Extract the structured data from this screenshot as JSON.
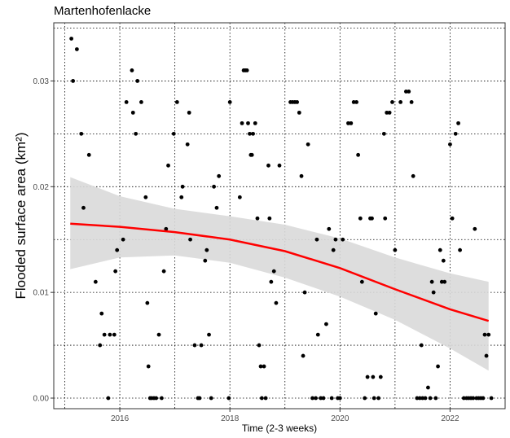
{
  "chart_data": {
    "type": "scatter",
    "title": "Martenhofenlacke",
    "xlabel": "Time (2-3 weeks)",
    "ylabel": "Flooded surface area (km²)",
    "xlim": [
      2014.8,
      2023.0
    ],
    "ylim": [
      -0.001,
      0.0355
    ],
    "x_ticks": [
      2016,
      2018,
      2020,
      2022
    ],
    "y_ticks": [
      0.0,
      0.01,
      0.02,
      0.03
    ],
    "x_tick_labels": [
      "2016",
      "2018",
      "2020",
      "2022"
    ],
    "y_tick_labels": [
      "0.00",
      "0.01",
      "0.02",
      "0.03"
    ],
    "grid": true,
    "colors": {
      "points": "#000000",
      "trend": "#ff0000",
      "band": "#d9d9d9"
    },
    "trend": {
      "x": [
        2015.1,
        2016.0,
        2017.0,
        2018.0,
        2019.0,
        2020.0,
        2021.0,
        2022.0,
        2022.7
      ],
      "y": [
        0.0165,
        0.0162,
        0.0157,
        0.015,
        0.0139,
        0.0123,
        0.0103,
        0.0084,
        0.0073
      ],
      "lower": [
        0.0122,
        0.0133,
        0.0135,
        0.0128,
        0.0114,
        0.0096,
        0.0074,
        0.0047,
        0.0026
      ],
      "upper": [
        0.0209,
        0.0191,
        0.0179,
        0.0172,
        0.0164,
        0.0151,
        0.0133,
        0.0118,
        0.011
      ]
    },
    "points": [
      [
        2015.12,
        0.034
      ],
      [
        2015.15,
        0.03
      ],
      [
        2015.22,
        0.033
      ],
      [
        2015.3,
        0.025
      ],
      [
        2015.34,
        0.018
      ],
      [
        2015.44,
        0.023
      ],
      [
        2015.56,
        0.011
      ],
      [
        2015.64,
        0.005
      ],
      [
        2015.67,
        0.008
      ],
      [
        2015.72,
        0.006
      ],
      [
        2015.79,
        0.0
      ],
      [
        2015.82,
        0.006
      ],
      [
        2015.9,
        0.006
      ],
      [
        2015.92,
        0.012
      ],
      [
        2015.95,
        0.014
      ],
      [
        2016.06,
        0.015
      ],
      [
        2016.12,
        0.028
      ],
      [
        2016.22,
        0.031
      ],
      [
        2016.24,
        0.027
      ],
      [
        2016.29,
        0.025
      ],
      [
        2016.32,
        0.03
      ],
      [
        2016.39,
        0.028
      ],
      [
        2016.47,
        0.019
      ],
      [
        2016.5,
        0.009
      ],
      [
        2016.52,
        0.003
      ],
      [
        2016.55,
        0.0
      ],
      [
        2016.58,
        0.0
      ],
      [
        2016.62,
        0.0
      ],
      [
        2016.66,
        0.0
      ],
      [
        2016.71,
        0.006
      ],
      [
        2016.76,
        0.0
      ],
      [
        2016.8,
        0.012
      ],
      [
        2016.84,
        0.016
      ],
      [
        2016.88,
        0.022
      ],
      [
        2016.98,
        0.025
      ],
      [
        2017.04,
        0.028
      ],
      [
        2017.12,
        0.019
      ],
      [
        2017.14,
        0.02
      ],
      [
        2017.23,
        0.024
      ],
      [
        2017.26,
        0.027
      ],
      [
        2017.28,
        0.015
      ],
      [
        2017.36,
        0.005
      ],
      [
        2017.42,
        0.0
      ],
      [
        2017.45,
        0.0
      ],
      [
        2017.48,
        0.005
      ],
      [
        2017.55,
        0.013
      ],
      [
        2017.58,
        0.014
      ],
      [
        2017.62,
        0.006
      ],
      [
        2017.66,
        0.0
      ],
      [
        2017.71,
        0.02
      ],
      [
        2017.76,
        0.018
      ],
      [
        2017.8,
        0.021
      ],
      [
        2017.98,
        0.0
      ],
      [
        2018.0,
        0.028
      ],
      [
        2018.18,
        0.019
      ],
      [
        2018.22,
        0.026
      ],
      [
        2018.25,
        0.031
      ],
      [
        2018.28,
        0.031
      ],
      [
        2018.31,
        0.031
      ],
      [
        2018.33,
        0.026
      ],
      [
        2018.36,
        0.025
      ],
      [
        2018.38,
        0.023
      ],
      [
        2018.4,
        0.023
      ],
      [
        2018.42,
        0.025
      ],
      [
        2018.46,
        0.026
      ],
      [
        2018.5,
        0.017
      ],
      [
        2018.53,
        0.005
      ],
      [
        2018.56,
        0.003
      ],
      [
        2018.58,
        0.0
      ],
      [
        2018.62,
        0.003
      ],
      [
        2018.65,
        0.0
      ],
      [
        2018.7,
        0.022
      ],
      [
        2018.72,
        0.017
      ],
      [
        2018.75,
        0.011
      ],
      [
        2018.8,
        0.012
      ],
      [
        2018.84,
        0.009
      ],
      [
        2018.9,
        0.022
      ],
      [
        2019.1,
        0.028
      ],
      [
        2019.14,
        0.028
      ],
      [
        2019.18,
        0.028
      ],
      [
        2019.22,
        0.028
      ],
      [
        2019.26,
        0.027
      ],
      [
        2019.3,
        0.021
      ],
      [
        2019.33,
        0.004
      ],
      [
        2019.36,
        0.01
      ],
      [
        2019.42,
        0.024
      ],
      [
        2019.5,
        0.0
      ],
      [
        2019.56,
        0.0
      ],
      [
        2019.58,
        0.015
      ],
      [
        2019.6,
        0.006
      ],
      [
        2019.65,
        0.0
      ],
      [
        2019.7,
        0.0
      ],
      [
        2019.75,
        0.007
      ],
      [
        2019.8,
        0.016
      ],
      [
        2019.85,
        0.0
      ],
      [
        2019.88,
        0.014
      ],
      [
        2019.92,
        0.015
      ],
      [
        2019.96,
        0.0
      ],
      [
        2020.0,
        0.0
      ],
      [
        2020.05,
        0.015
      ],
      [
        2020.15,
        0.026
      ],
      [
        2020.2,
        0.026
      ],
      [
        2020.25,
        0.028
      ],
      [
        2020.3,
        0.028
      ],
      [
        2020.33,
        0.023
      ],
      [
        2020.37,
        0.017
      ],
      [
        2020.4,
        0.011
      ],
      [
        2020.45,
        0.0
      ],
      [
        2020.5,
        0.002
      ],
      [
        2020.55,
        0.017
      ],
      [
        2020.58,
        0.017
      ],
      [
        2020.6,
        0.002
      ],
      [
        2020.62,
        0.0
      ],
      [
        2020.65,
        0.008
      ],
      [
        2020.7,
        0.0
      ],
      [
        2020.74,
        0.002
      ],
      [
        2020.8,
        0.025
      ],
      [
        2020.82,
        0.017
      ],
      [
        2020.85,
        0.027
      ],
      [
        2020.9,
        0.027
      ],
      [
        2020.95,
        0.028
      ],
      [
        2021.0,
        0.014
      ],
      [
        2021.1,
        0.028
      ],
      [
        2021.2,
        0.029
      ],
      [
        2021.25,
        0.029
      ],
      [
        2021.3,
        0.028
      ],
      [
        2021.33,
        0.021
      ],
      [
        2021.4,
        0.0
      ],
      [
        2021.45,
        0.0
      ],
      [
        2021.48,
        0.005
      ],
      [
        2021.5,
        0.0
      ],
      [
        2021.55,
        0.0
      ],
      [
        2021.6,
        0.001
      ],
      [
        2021.64,
        0.0
      ],
      [
        2021.67,
        0.011
      ],
      [
        2021.7,
        0.01
      ],
      [
        2021.74,
        0.0
      ],
      [
        2021.78,
        0.003
      ],
      [
        2021.82,
        0.014
      ],
      [
        2021.85,
        0.011
      ],
      [
        2021.88,
        0.013
      ],
      [
        2021.9,
        0.011
      ],
      [
        2022.0,
        0.024
      ],
      [
        2022.04,
        0.017
      ],
      [
        2022.1,
        0.025
      ],
      [
        2022.15,
        0.026
      ],
      [
        2022.18,
        0.014
      ],
      [
        2022.25,
        0.0
      ],
      [
        2022.3,
        0.0
      ],
      [
        2022.34,
        0.0
      ],
      [
        2022.38,
        0.0
      ],
      [
        2022.42,
        0.0
      ],
      [
        2022.45,
        0.016
      ],
      [
        2022.48,
        0.0
      ],
      [
        2022.52,
        0.0
      ],
      [
        2022.56,
        0.0
      ],
      [
        2022.6,
        0.0
      ],
      [
        2022.63,
        0.006
      ],
      [
        2022.66,
        0.004
      ],
      [
        2022.7,
        0.006
      ],
      [
        2022.75,
        0.0
      ]
    ]
  }
}
